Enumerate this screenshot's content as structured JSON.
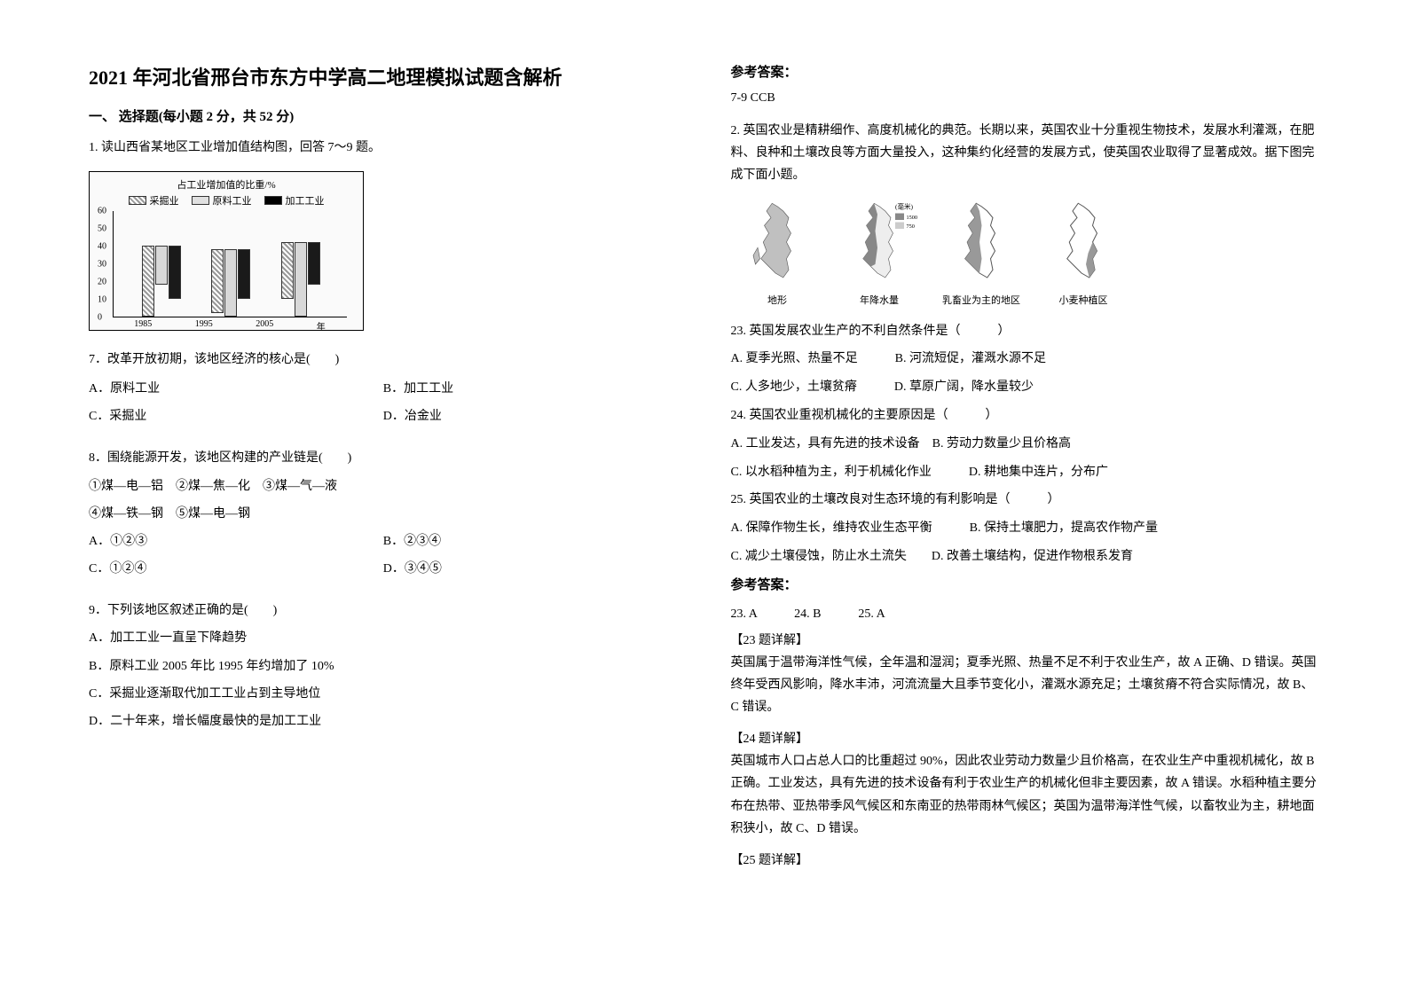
{
  "title": "2021 年河北省邢台市东方中学高二地理模拟试题含解析",
  "section1": {
    "header": "一、 选择题(每小题 2 分，共 52 分)",
    "q1_intro": "1. 读山西省某地区工业增加值结构图，回答 7～9 题。",
    "chart": {
      "title": "占工业增加值的比重/%",
      "legend": [
        {
          "label": "采掘业",
          "fill": "url(#hatch1)",
          "color": "#ffffff"
        },
        {
          "label": "原料工业",
          "fill": "#e0e0e0",
          "color": "#e0e0e0"
        },
        {
          "label": "加工工业",
          "fill": "#000000",
          "color": "#000000"
        }
      ],
      "y_ticks": [
        0,
        10,
        20,
        30,
        40,
        50,
        60
      ],
      "y_max": 60,
      "x_labels": [
        "1985",
        "1995",
        "2005",
        "年"
      ],
      "groups": [
        {
          "x": 12,
          "values": [
            40,
            22,
            30
          ]
        },
        {
          "x": 42,
          "values": [
            36,
            38,
            28
          ]
        },
        {
          "x": 72,
          "values": [
            32,
            42,
            24
          ]
        }
      ],
      "bar_colors": [
        "#b8b8b8",
        "#d8d8d8",
        "#1a1a1a"
      ]
    },
    "q7": {
      "text": "7．改革开放初期，该地区经济的核心是(　　)",
      "options": {
        "A": "A．原料工业",
        "B": "B．加工工业",
        "C": "C．采掘业",
        "D": "D．冶金业"
      }
    },
    "q8": {
      "text": "8．围绕能源开发，该地区构建的产业链是(　　)",
      "chains": "①煤—电—铝　②煤—焦—化　③煤—气—液",
      "chains2": "④煤—铁—钢　⑤煤—电—钢",
      "options": {
        "A": "A．①②③",
        "B": "B．②③④",
        "C": "C．①②④",
        "D": "D．③④⑤"
      }
    },
    "q9": {
      "text": "9．下列该地区叙述正确的是(　　)",
      "options": {
        "A": "A．加工工业一直呈下降趋势",
        "B": "B．原料工业 2005 年比 1995 年约增加了 10%",
        "C": "C．采掘业逐渐取代加工工业占到主导地位",
        "D": "D．二十年来，增长幅度最快的是加工工业"
      }
    }
  },
  "section2": {
    "answer_header": "参考答案：",
    "answer_79": "7-9 CCB",
    "q2_intro": "2. 英国农业是精耕细作、高度机械化的典范。长期以来，英国农业十分重视生物技术，发展水利灌溉，在肥料、良种和土壤改良等方面大量投入，这种集约化经营的发展方式，使英国农业取得了显著成效。据下图完成下面小题。",
    "maps": {
      "legend_alt": "(毫米)",
      "legend_vals": [
        "1500",
        "750"
      ],
      "labels": [
        "地形",
        "年降水量",
        "乳畜业为主的地区",
        "小麦种植区"
      ]
    },
    "q23": {
      "text": "23. 英国发展农业生产的不利自然条件是（　　　）",
      "options": {
        "A": "A. 夏季光照、热量不足　　　B. 河流短促，灌溉水源不足",
        "C": "C. 人多地少，土壤贫瘠　　　D. 草原广阔，降水量较少"
      }
    },
    "q24": {
      "text": "24. 英国农业重视机械化的主要原因是（　　　）",
      "options": {
        "A": "A. 工业发达，具有先进的技术设备　B. 劳动力数量少且价格高",
        "C": "C. 以水稻种植为主，利于机械化作业　　　D. 耕地集中连片，分布广"
      }
    },
    "q25": {
      "text": "25. 英国农业的土壤改良对生态环境的有利影响是（　　　）",
      "options": {
        "A": "A. 保障作物生长，维持农业生态平衡　　　B. 保持土壤肥力，提高农作物产量",
        "C": "C. 减少土壤侵蚀，防止水土流失　　D. 改善土壤结构，促进作物根系发育"
      }
    },
    "answer_header2": "参考答案：",
    "answers_2325": "23. A　　　24. B　　　25. A",
    "exp23_h": "【23 题详解】",
    "exp23": "英国属于温带海洋性气候，全年温和湿润；夏季光照、热量不足不利于农业生产，故 A 正确、D 错误。英国终年受西风影响，降水丰沛，河流流量大且季节变化小，灌溉水源充足；土壤贫瘠不符合实际情况，故 B、C 错误。",
    "exp24_h": "【24 题详解】",
    "exp24": "英国城市人口占总人口的比重超过 90%，因此农业劳动力数量少且价格高，在农业生产中重视机械化，故 B 正确。工业发达，具有先进的技术设备有利于农业生产的机械化但非主要因素，故 A 错误。水稻种植主要分布在热带、亚热带季风气候区和东南亚的热带雨林气候区；英国为温带海洋性气候，以畜牧业为主，耕地面积狭小，故 C、D 错误。",
    "exp25_h": "【25 题详解】"
  }
}
